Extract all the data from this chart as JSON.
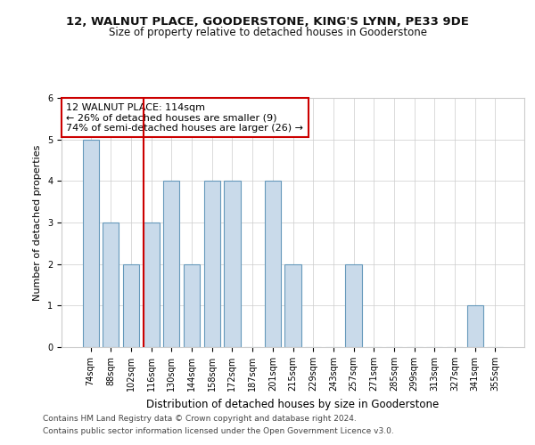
{
  "title1": "12, WALNUT PLACE, GOODERSTONE, KING'S LYNN, PE33 9DE",
  "title2": "Size of property relative to detached houses in Gooderstone",
  "xlabel": "Distribution of detached houses by size in Gooderstone",
  "ylabel": "Number of detached properties",
  "categories": [
    "74sqm",
    "88sqm",
    "102sqm",
    "116sqm",
    "130sqm",
    "144sqm",
    "158sqm",
    "172sqm",
    "187sqm",
    "201sqm",
    "215sqm",
    "229sqm",
    "243sqm",
    "257sqm",
    "271sqm",
    "285sqm",
    "299sqm",
    "313sqm",
    "327sqm",
    "341sqm",
    "355sqm"
  ],
  "values": [
    5,
    3,
    2,
    3,
    4,
    2,
    4,
    4,
    0,
    4,
    2,
    0,
    0,
    2,
    0,
    0,
    0,
    0,
    0,
    1,
    0
  ],
  "bar_color": "#c9daea",
  "bar_edge_color": "#6699bb",
  "highlight_line_index": 3,
  "highlight_line_color": "#cc0000",
  "annotation_text": "12 WALNUT PLACE: 114sqm\n← 26% of detached houses are smaller (9)\n74% of semi-detached houses are larger (26) →",
  "annotation_box_color": "#cc0000",
  "ylim": [
    0,
    6
  ],
  "yticks": [
    0,
    1,
    2,
    3,
    4,
    5,
    6
  ],
  "footer1": "Contains HM Land Registry data © Crown copyright and database right 2024.",
  "footer2": "Contains public sector information licensed under the Open Government Licence v3.0.",
  "bg_color": "#ffffff",
  "grid_color": "#cccccc",
  "title1_fontsize": 9.5,
  "title2_fontsize": 8.5,
  "xlabel_fontsize": 8.5,
  "ylabel_fontsize": 8,
  "tick_fontsize": 7,
  "annotation_fontsize": 8,
  "footer_fontsize": 6.5
}
